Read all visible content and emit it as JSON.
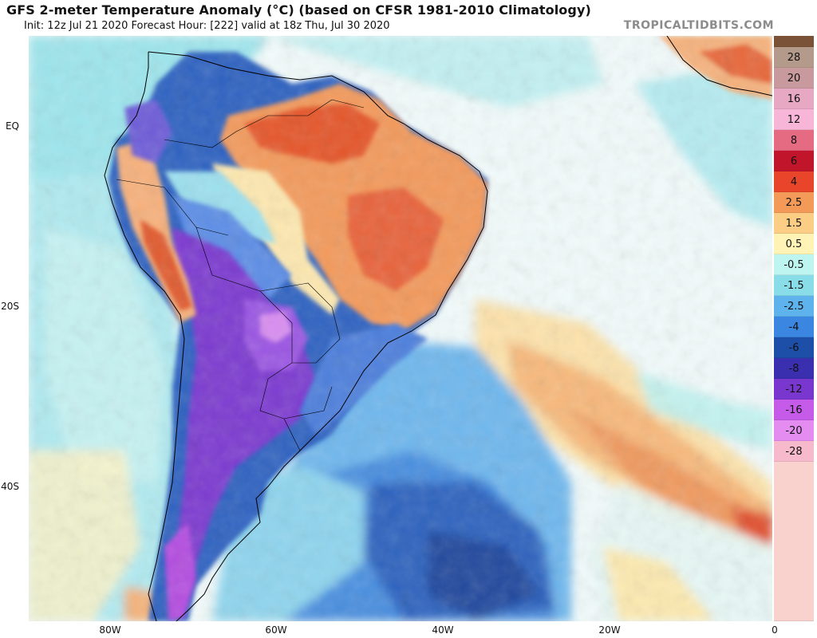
{
  "header": {
    "title": "GFS 2-meter Temperature Anomaly (°C) (based on CFSR 1981-2010 Climatology)",
    "subtitle": "Init: 12z Jul 21 2020   Forecast Hour: [222]   valid at 18z Thu, Jul 30 2020",
    "brand": "TROPICALTIDBITS.COM"
  },
  "axes": {
    "lat_labels": [
      "EQ",
      "20S",
      "40S"
    ],
    "lon_labels": [
      "80W",
      "60W",
      "40W",
      "20W",
      "0"
    ]
  },
  "colorbar": {
    "labels": [
      "28",
      "20",
      "16",
      "12",
      "8",
      "6",
      "4",
      "2.5",
      "1.5",
      "0.5",
      "-0.5",
      "-1.5",
      "-2.5",
      "-4",
      "-6",
      "-8",
      "-12",
      "-16",
      "-20",
      "-28"
    ],
    "colors": [
      "#b39a8a",
      "#c89a9e",
      "#e7a8c3",
      "#f7b6d7",
      "#e56b83",
      "#c0152b",
      "#e8452a",
      "#f49a58",
      "#fbcd85",
      "#fff3b6",
      "#bff5f0",
      "#89dde8",
      "#5fb3ec",
      "#3a86e0",
      "#1d4ea8",
      "#3a2fae",
      "#7a37d0",
      "#c55be8",
      "#e58cf1",
      "#f7b9cc"
    ],
    "top_cap": "#7a5238",
    "bottom_cap": "#fad2cd"
  },
  "map": {
    "description_colors": {
      "ocean_neutral": "#e9f7f7",
      "warm_anomaly": "#f3a66a",
      "cold_anomaly": "#2d5db8",
      "very_cold": "#8a3fd6",
      "coastline": "#000000"
    }
  }
}
